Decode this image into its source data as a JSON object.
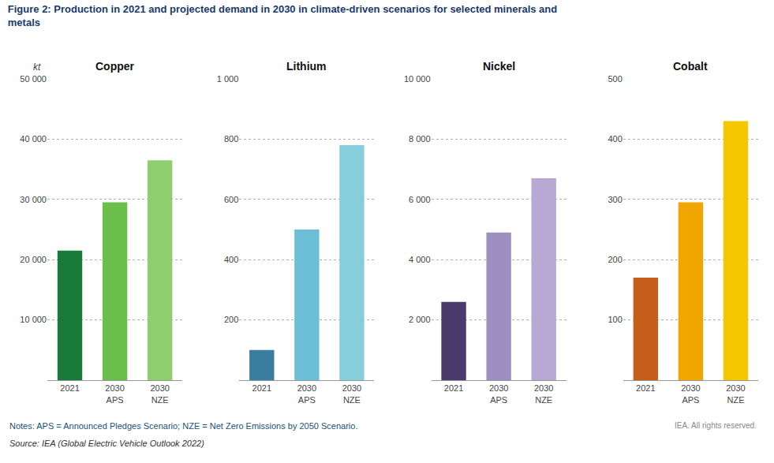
{
  "title": "Figure 2: Production in 2021 and projected demand in 2030 in climate-driven scenarios for selected minerals and\nmetals",
  "annotations": [
    "Notes: APS = Announced Pledges Scenario; NZE = Net Zero Emissions by 2050 Scenario.",
    "Source: IEA (Global Electric Vehicle Outlook 2022)",
    "IEA. All rights reserved."
  ],
  "chart_data": [
    {
      "type": "bar",
      "title": "Copper",
      "ylabel": "kt",
      "categories": [
        "2021",
        "2030\nAPS",
        "2030\nNZE"
      ],
      "values": [
        21500,
        29500,
        36500
      ],
      "colors": [
        "#1a7a3c",
        "#6abf4b",
        "#8fce6e"
      ],
      "ylim": [
        0,
        50000
      ],
      "yticks": [
        {
          "value": 10000,
          "label": "10 000"
        },
        {
          "value": 20000,
          "label": "20 000"
        },
        {
          "value": 30000,
          "label": "30 000"
        },
        {
          "value": 40000,
          "label": "40 000"
        },
        {
          "value": 50000,
          "label": "50 000"
        }
      ],
      "grid": true
    },
    {
      "type": "bar",
      "title": "Lithium",
      "categories": [
        "2021",
        "2030\nAPS",
        "2030\nNZE"
      ],
      "values": [
        100,
        500,
        780
      ],
      "colors": [
        "#3a7d9e",
        "#6cbdd6",
        "#87cedc"
      ],
      "ylim": [
        0,
        1000
      ],
      "yticks": [
        200,
        400,
        600,
        800,
        {
          "value": 1000,
          "label": "1 000"
        }
      ],
      "grid": true
    },
    {
      "type": "bar",
      "title": "Nickel",
      "categories": [
        "2021",
        "2030\nAPS",
        "2030\nNZE"
      ],
      "values": [
        2600,
        4900,
        6700
      ],
      "colors": [
        "#4a3a6b",
        "#9e8fc2",
        "#b8a9d4"
      ],
      "ylim": [
        0,
        10000
      ],
      "yticks": [
        {
          "value": 2000,
          "label": "2 000"
        },
        {
          "value": 4000,
          "label": "4 000"
        },
        {
          "value": 6000,
          "label": "6 000"
        },
        {
          "value": 8000,
          "label": "8 000"
        },
        {
          "value": 10000,
          "label": "10 000"
        }
      ],
      "grid": true
    },
    {
      "type": "bar",
      "title": "Cobalt",
      "categories": [
        "2021",
        "2030\nAPS",
        "2030\nNZE"
      ],
      "values": [
        170,
        295,
        430
      ],
      "colors": [
        "#c45e1a",
        "#f0a500",
        "#f5c700"
      ],
      "ylim": [
        0,
        500
      ],
      "yticks": [
        100,
        200,
        300,
        400,
        500
      ],
      "grid": true
    }
  ]
}
